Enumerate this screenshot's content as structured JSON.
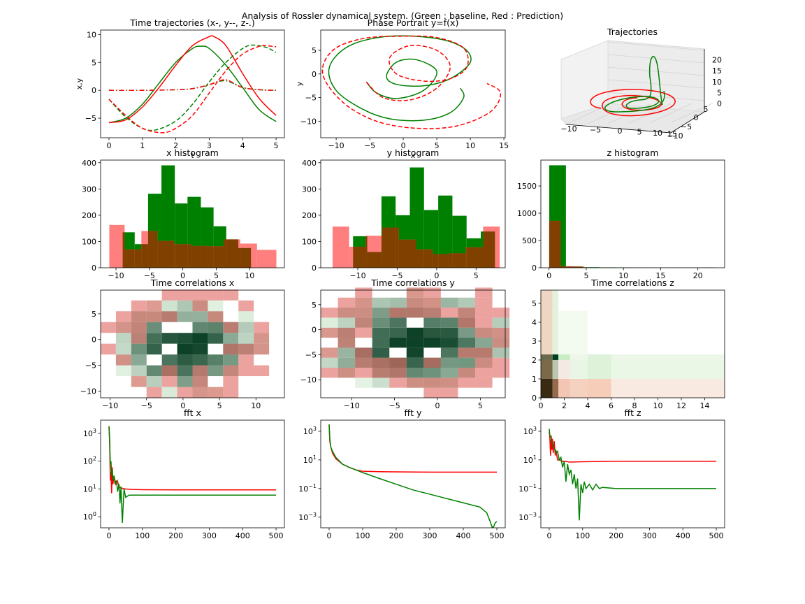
{
  "suptitle": "Analysis of Rossler dynamical system. (Green : baseline, Red : Prediction)",
  "colors": {
    "baseline": "#008000",
    "prediction": "#ff0000",
    "pred_hist": "#ff7f7f",
    "overlap_hist": "#7f4000"
  },
  "chart_data": [
    {
      "id": "traj",
      "type": "line",
      "title": "Time trajectories (x-, y--, z-.)",
      "xlabel": "t",
      "ylabel": "x,y",
      "xlim": [
        -0.25,
        5.25
      ],
      "ylim": [
        -8.5,
        10.8
      ],
      "xticks": [
        0,
        1,
        2,
        3,
        4,
        5
      ],
      "yticks": [
        -5,
        0,
        5,
        10
      ],
      "series": [
        {
          "color": "baseline",
          "dash": "solid",
          "x": [
            0,
            0.5,
            1,
            1.5,
            2,
            2.5,
            2.75,
            3,
            3.5,
            4,
            4.5,
            5
          ],
          "y": [
            -5.8,
            -5.0,
            -2.5,
            1.3,
            5.0,
            7.5,
            7.9,
            7.5,
            4.5,
            0.5,
            -3.5,
            -5.6
          ]
        },
        {
          "color": "prediction",
          "dash": "solid",
          "x": [
            0,
            0.5,
            1,
            1.5,
            2,
            2.5,
            3,
            3.15,
            3.5,
            4,
            4.5,
            5
          ],
          "y": [
            -5.8,
            -5.3,
            -3.0,
            0.5,
            4.5,
            8.0,
            9.6,
            9.6,
            8.0,
            3.0,
            -1.5,
            -4.5
          ]
        },
        {
          "color": "baseline",
          "dash": "dashed",
          "x": [
            0,
            0.5,
            1,
            1.4,
            2,
            2.5,
            3,
            3.5,
            4,
            4.3,
            4.7,
            5
          ],
          "y": [
            -1.6,
            -4.8,
            -6.8,
            -7.1,
            -5.5,
            -2.5,
            1.5,
            5.0,
            7.5,
            8.1,
            7.7,
            6.8
          ]
        },
        {
          "color": "prediction",
          "dash": "dashed",
          "x": [
            0,
            0.5,
            1,
            1.6,
            2,
            2.5,
            3,
            3.5,
            4,
            4.5,
            4.7,
            5
          ],
          "y": [
            -1.6,
            -4.5,
            -6.8,
            -7.6,
            -6.8,
            -4.5,
            -0.5,
            3.5,
            6.5,
            7.9,
            8.0,
            7.8
          ]
        },
        {
          "color": "baseline",
          "dash": "dashdot",
          "x": [
            0,
            1,
            2,
            2.5,
            3,
            3.3,
            3.5,
            3.7,
            4,
            4.5,
            5
          ],
          "y": [
            0,
            0,
            0.1,
            0.3,
            1.0,
            1.6,
            1.7,
            1.3,
            0.5,
            0.1,
            0.0
          ]
        },
        {
          "color": "prediction",
          "dash": "dashdot",
          "x": [
            0,
            1,
            2,
            2.5,
            3,
            3.3,
            3.5,
            3.7,
            4,
            4.5,
            5
          ],
          "y": [
            0,
            0,
            0.1,
            0.3,
            1.0,
            1.7,
            1.9,
            1.4,
            0.5,
            0.1,
            0.0
          ]
        }
      ]
    },
    {
      "id": "phase",
      "type": "line",
      "title": "Phase Portrait y=f(x)",
      "xlabel": "x",
      "ylabel": "y",
      "xlim": [
        -12.3,
        15.2
      ],
      "ylim": [
        -13.5,
        9.3
      ],
      "xticks": [
        -10,
        -5,
        0,
        5,
        10,
        15
      ],
      "yticks": [
        -10,
        -5,
        0,
        5
      ],
      "series": [
        {
          "color": "baseline",
          "dash": "solid",
          "x": [
            -5.5,
            -4,
            -1,
            3,
            5,
            2,
            -1,
            -2.5,
            -1,
            3,
            7,
            10,
            9,
            5,
            -2,
            -8,
            -11,
            -10,
            -6,
            -2,
            3,
            7,
            9,
            8.5
          ],
          "y": [
            -1.7,
            -4,
            -5.2,
            -3.5,
            0.5,
            3,
            2.5,
            -0.5,
            -2.2,
            -2.5,
            -1,
            2.5,
            5.5,
            7.5,
            8,
            6,
            1.5,
            -3.5,
            -7.5,
            -9.5,
            -9.8,
            -8.2,
            -5,
            -3
          ]
        },
        {
          "color": "prediction",
          "dash": "dashed",
          "x": [
            -5.5,
            -3,
            1,
            5,
            7,
            5,
            1,
            -2,
            -1,
            3,
            7,
            9.5,
            9,
            5,
            0,
            -6,
            -10.5,
            -12,
            -9,
            -4,
            2,
            8,
            13,
            14.5,
            12.5
          ],
          "y": [
            -1.7,
            -5,
            -5.5,
            -3,
            1.5,
            5,
            6,
            3.5,
            0,
            -1.5,
            -1,
            1.5,
            5.5,
            7.7,
            8,
            7.5,
            5,
            0,
            -6,
            -10,
            -11.5,
            -11,
            -8,
            -4,
            -2
          ]
        }
      ]
    },
    {
      "id": "traj3d",
      "type": "line",
      "title": "Trajectories",
      "xticks": [
        -10,
        -5,
        0,
        5,
        10,
        15
      ],
      "yticks": [
        -10,
        -5,
        0,
        5
      ],
      "zticks": [
        0,
        5,
        10,
        15,
        20
      ]
    },
    {
      "id": "xhist",
      "type": "bar",
      "title": "x histogram",
      "xlim": [
        -12.3,
        15.2
      ],
      "ylim": [
        0,
        410
      ],
      "xticks": [
        -10,
        -5,
        0,
        5,
        10
      ],
      "yticks": [
        0,
        100,
        200,
        300,
        400
      ],
      "series": [
        {
          "name": "baseline",
          "color": "baseline",
          "edges": [
            -9,
            -7.2,
            -5.2,
            -3.2,
            -1.2,
            0.7,
            2.7,
            4.6,
            6.5,
            8.3,
            10.2
          ],
          "values": [
            135,
            90,
            282,
            390,
            245,
            270,
            230,
            158,
            108,
            75
          ]
        },
        {
          "name": "prediction",
          "color": "pred_hist",
          "edges": [
            -11,
            -8.7,
            -6.2,
            -3.8,
            -1.3,
            1.2,
            3.6,
            6.1,
            8.6,
            11.1,
            14.0
          ],
          "values": [
            163,
            70,
            140,
            102,
            90,
            83,
            82,
            108,
            92,
            68
          ]
        }
      ]
    },
    {
      "id": "yhist",
      "type": "bar",
      "title": "y histogram",
      "xlim": [
        -14.7,
        8.7
      ],
      "ylim": [
        0,
        410
      ],
      "xticks": [
        -10,
        -5,
        0,
        5
      ],
      "yticks": [
        0,
        100,
        200,
        300,
        400
      ],
      "series": [
        {
          "name": "baseline",
          "color": "baseline",
          "edges": [
            -10.6,
            -8.8,
            -7.0,
            -5.2,
            -3.4,
            -1.6,
            0.2,
            2.0,
            3.8,
            5.6,
            7.4
          ],
          "values": [
            120,
            60,
            272,
            200,
            382,
            220,
            275,
            198,
            112,
            138
          ]
        },
        {
          "name": "prediction",
          "color": "pred_hist",
          "edges": [
            -13.2,
            -11.1,
            -9.0,
            -6.9,
            -4.8,
            -2.6,
            -0.5,
            1.6,
            3.7,
            5.9,
            8.0
          ],
          "values": [
            157,
            80,
            122,
            153,
            107,
            70,
            52,
            55,
            78,
            157
          ]
        }
      ]
    },
    {
      "id": "zhist",
      "type": "bar",
      "title": "z histogram",
      "xlim": [
        -1.1,
        23.6
      ],
      "ylim": [
        0,
        1975
      ],
      "xticks": [
        0,
        5,
        10,
        15,
        20
      ],
      "yticks": [
        0,
        500,
        1000,
        1500
      ],
      "series": [
        {
          "name": "baseline",
          "color": "baseline",
          "edges": [
            0.03,
            2.27,
            4.52,
            6.76,
            9.0,
            11.25,
            13.49,
            15.73,
            17.97,
            20.21,
            22.46
          ],
          "values": [
            1880,
            22,
            10,
            7,
            6,
            5,
            4,
            4,
            4,
            6
          ]
        },
        {
          "name": "prediction",
          "color": "pred_hist",
          "edges": [
            0.0,
            1.58,
            3.16,
            4.74,
            6.32,
            7.9
          ],
          "values": [
            860,
            30,
            22,
            0,
            0
          ]
        }
      ]
    },
    {
      "id": "corrx",
      "type": "heatmap",
      "title": "Time correlations x",
      "xlim": [
        -11.3,
        13.9
      ],
      "ylim": [
        -11.3,
        9.6
      ],
      "xticks": [
        -10,
        -5,
        0,
        5,
        10
      ],
      "yticks": [
        -10,
        -5,
        0,
        5
      ]
    },
    {
      "id": "corry",
      "type": "heatmap",
      "title": "Time correlations y",
      "xlim": [
        -13.6,
        7.9
      ],
      "ylim": [
        -13.6,
        7.9
      ],
      "xticks": [
        -10,
        -5,
        0,
        5
      ],
      "yticks": [
        -10,
        -5,
        0,
        5
      ]
    },
    {
      "id": "corrz",
      "type": "heatmap",
      "title": "Time correlations z",
      "xlim": [
        0,
        15.7
      ],
      "ylim": [
        0,
        5.7
      ],
      "xticks": [
        0,
        2,
        4,
        6,
        8,
        10,
        12,
        14
      ],
      "yticks": [
        0,
        1,
        2,
        3,
        4,
        5
      ]
    },
    {
      "id": "fftx",
      "type": "line",
      "title": "fft x",
      "log_y": true,
      "xlim": [
        -25,
        525
      ],
      "ylim": [
        0.4,
        3000
      ],
      "xticks": [
        0,
        100,
        200,
        300,
        400,
        500
      ],
      "yticks": [
        1,
        10,
        100,
        1000
      ],
      "series": [
        {
          "color": "prediction",
          "x": [
            0,
            2,
            4,
            6,
            8,
            10,
            12,
            15,
            20,
            25,
            30,
            40,
            50,
            70,
            100,
            200,
            300,
            400,
            500
          ],
          "y": [
            1800,
            500,
            20,
            40,
            7,
            60,
            15,
            30,
            15,
            20,
            12,
            10.5,
            10,
            9.6,
            9.4,
            9.3,
            9.3,
            9.3,
            9.3
          ]
        },
        {
          "color": "baseline",
          "x": [
            0,
            2,
            4,
            6,
            8,
            10,
            12,
            15,
            18,
            22,
            26,
            30,
            33,
            36,
            40,
            45,
            50,
            60,
            100,
            200,
            300,
            400,
            500
          ],
          "y": [
            1800,
            600,
            80,
            100,
            30,
            50,
            20,
            30,
            15,
            20,
            8,
            15,
            3,
            12,
            0.6,
            10,
            5,
            6,
            6,
            6,
            6,
            6,
            6
          ]
        }
      ]
    },
    {
      "id": "ffty",
      "type": "line",
      "title": "fft y",
      "log_y": true,
      "xlim": [
        -25,
        525
      ],
      "ylim": [
        0.00018,
        6000
      ],
      "xticks": [
        0,
        100,
        200,
        300,
        400,
        500
      ],
      "yticks": [
        0.001,
        0.1,
        10,
        1000
      ],
      "series": [
        {
          "color": "prediction",
          "x": [
            0,
            2,
            5,
            10,
            20,
            40,
            60,
            80,
            100,
            150,
            200,
            300,
            400,
            500
          ],
          "y": [
            3000,
            200,
            80,
            30,
            12,
            5,
            3,
            2,
            1.6,
            1.5,
            1.45,
            1.4,
            1.4,
            1.4
          ]
        },
        {
          "color": "baseline",
          "x": [
            0,
            2,
            5,
            10,
            20,
            40,
            60,
            80,
            100,
            150,
            200,
            250,
            300,
            350,
            400,
            450,
            470,
            480,
            486,
            490,
            495,
            500
          ],
          "y": [
            3000,
            300,
            80,
            40,
            15,
            5,
            3,
            2,
            1.3,
            0.5,
            0.2,
            0.08,
            0.04,
            0.02,
            0.01,
            0.005,
            0.002,
            0.0005,
            0.0002,
            0.0002,
            0.0004,
            0.0005
          ]
        }
      ]
    },
    {
      "id": "fftz",
      "type": "line",
      "title": "fft z",
      "log_y": true,
      "xlim": [
        -25,
        525
      ],
      "ylim": [
        0.00018,
        6000
      ],
      "xticks": [
        0,
        100,
        200,
        300,
        400,
        500
      ],
      "yticks": [
        0.001,
        0.1,
        10,
        1000
      ],
      "series": [
        {
          "color": "prediction",
          "x": [
            0,
            2,
            4,
            6,
            8,
            10,
            12,
            15,
            18,
            20,
            25,
            30,
            40,
            50,
            60,
            80,
            100,
            150,
            200,
            300,
            400,
            500
          ],
          "y": [
            1000,
            300,
            20,
            500,
            50,
            300,
            30,
            200,
            20,
            50,
            10,
            10,
            8,
            8,
            7,
            7.2,
            7.4,
            7.8,
            8,
            8,
            8,
            8
          ]
        },
        {
          "color": "baseline",
          "x": [
            0,
            2,
            5,
            8,
            12,
            16,
            20,
            25,
            30,
            35,
            40,
            45,
            50,
            55,
            60,
            65,
            70,
            75,
            80,
            85,
            90,
            95,
            100,
            105,
            110,
            120,
            130,
            140,
            150,
            160,
            200,
            250,
            300,
            400,
            500
          ],
          "y": [
            1500,
            500,
            400,
            200,
            80,
            60,
            30,
            40,
            10,
            15,
            3,
            8,
            0.3,
            5,
            1,
            2,
            0.2,
            1,
            0.1,
            0.5,
            0.0006,
            0.2,
            0.05,
            0.3,
            0.1,
            0.2,
            0.08,
            0.2,
            0.1,
            0.12,
            0.1,
            0.1,
            0.1,
            0.1,
            0.1
          ]
        }
      ]
    }
  ]
}
